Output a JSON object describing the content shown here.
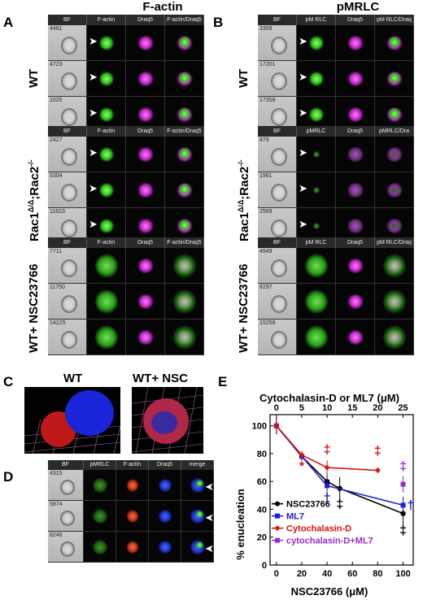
{
  "panels": {
    "A": {
      "letter": "A",
      "title": "F-actin"
    },
    "B": {
      "letter": "B",
      "title": "pMRLC"
    },
    "C": {
      "letter": "C",
      "wt_label": "WT",
      "wtnsc_label": "WT+ NSC"
    },
    "D": {
      "letter": "D"
    },
    "E": {
      "letter": "E"
    }
  },
  "blockA": [
    {
      "label": "WT",
      "headers": [
        "BF",
        "F-actin",
        "Draq5",
        "F-actin/Draq5"
      ],
      "ids": [
        "4461",
        "4723",
        "1025"
      ]
    },
    {
      "label_main": "Rac1",
      "label_sup": "Δ/Δ",
      "label_rest": ";Rac2",
      "label_sup2": "-/-",
      "headers": [
        "BF",
        "F-actin",
        "Draq5",
        "F-actin/Draq5"
      ],
      "ids": [
        "2427",
        "5304",
        "11623"
      ]
    },
    {
      "label": "WT+ NSC23766",
      "headers": [
        "BF",
        "F-actin",
        "Draq5",
        "F-actin/Draq5"
      ],
      "ids": [
        "7711",
        "11750",
        "14125"
      ]
    }
  ],
  "blockB": [
    {
      "label": "WT",
      "headers": [
        "BF",
        "pM RLC",
        "Draq5",
        "pM RLC/Draq"
      ],
      "ids": [
        "3359",
        "17201",
        "17358"
      ]
    },
    {
      "label_main": "Rac1",
      "label_sup": "Δ/Δ",
      "label_rest": ";Rac2",
      "label_sup2": "-/-",
      "headers": [
        "BF",
        "pMRLC",
        "Draq5",
        "pMRLC/Dra"
      ],
      "ids": [
        "879",
        "1961",
        "2569"
      ]
    },
    {
      "label": "WT+ NSC23766",
      "headers": [
        "BF",
        "pM RLC",
        "Draq5",
        "pM RLC/Draq"
      ],
      "ids": [
        "4949",
        "8297",
        "15258"
      ]
    }
  ],
  "blockD": {
    "headers": [
      "BF",
      "pMRLC",
      "F-actin",
      "Draq5",
      "merge"
    ],
    "ids": [
      "4315",
      "5874",
      "8246"
    ]
  },
  "chart_data": {
    "type": "line",
    "title_top": "Cytochalasin-D or ML7 (μM)",
    "xlabel": "NSC23766 (μM)",
    "ylabel": "% enucleation",
    "x_bottom_ticks": [
      "0",
      "20",
      "40",
      "60",
      "80",
      "100"
    ],
    "x_top_ticks": [
      "0",
      "5",
      "10",
      "15",
      "20",
      "25"
    ],
    "y_ticks": [
      "0",
      "20",
      "40",
      "60",
      "80",
      "100"
    ],
    "ylim": [
      0,
      108
    ],
    "xlim": [
      -5,
      108
    ],
    "series": [
      {
        "name": "NSC23766",
        "color": "#000000",
        "marker": "circle",
        "x": [
          0,
          20,
          40,
          50,
          100
        ],
        "y": [
          100,
          78,
          60,
          55,
          37
        ],
        "err": [
          6,
          3,
          4,
          8,
          12
        ]
      },
      {
        "name": "ML7",
        "color": "#2020d0",
        "marker": "square",
        "x": [
          0,
          20,
          40,
          100
        ],
        "y": [
          100,
          78,
          57,
          43
        ],
        "err": [
          4,
          3,
          8,
          6
        ]
      },
      {
        "name": "Cytochalasin-D",
        "color": "#e01010",
        "marker": "diamond",
        "x": [
          0,
          20,
          40,
          80
        ],
        "y": [
          100,
          79,
          70,
          68
        ],
        "err": [
          5,
          3,
          5,
          2
        ]
      },
      {
        "name": "cytochalasin-D+ML7",
        "color": "#9a2ad0",
        "marker": "square",
        "x": [
          100
        ],
        "y": [
          58
        ],
        "err": [
          6
        ]
      }
    ],
    "annotations": [
      {
        "text": "*",
        "color": "#e01010",
        "x": 20,
        "y": 68
      },
      {
        "text": "‡",
        "color": "#e01010",
        "x": 40,
        "y": 80
      },
      {
        "text": "‡",
        "color": "#e01010",
        "x": 80,
        "y": 79
      },
      {
        "text": "†",
        "color": "#2020d0",
        "x": 40,
        "y": 45
      },
      {
        "text": "‡",
        "color": "#000000",
        "x": 50,
        "y": 41
      },
      {
        "text": "‡",
        "color": "#9a2ad0",
        "x": 100,
        "y": 68
      },
      {
        "text": "†",
        "color": "#2020d0",
        "x": 106,
        "y": 40
      },
      {
        "text": "‡",
        "color": "#000000",
        "x": 100,
        "y": 22
      }
    ],
    "legend_position": "left"
  }
}
